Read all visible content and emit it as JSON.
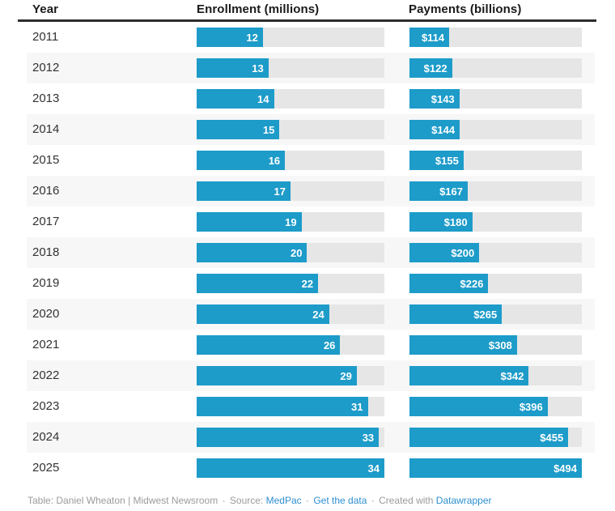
{
  "chart_data": {
    "type": "bar",
    "title": "",
    "columns": [
      "Year",
      "Enrollment (millions)",
      "Payments (billions)"
    ],
    "categories": [
      "2011",
      "2012",
      "2013",
      "2014",
      "2015",
      "2016",
      "2017",
      "2018",
      "2019",
      "2020",
      "2021",
      "2022",
      "2023",
      "2024",
      "2025"
    ],
    "series": [
      {
        "name": "Enrollment (millions)",
        "values": [
          12,
          13,
          14,
          15,
          16,
          17,
          19,
          20,
          22,
          24,
          26,
          29,
          31,
          33,
          34
        ],
        "max": 34,
        "value_prefix": ""
      },
      {
        "name": "Payments (billions)",
        "values": [
          114,
          122,
          143,
          144,
          155,
          167,
          180,
          200,
          226,
          265,
          308,
          342,
          396,
          455,
          494
        ],
        "max": 494,
        "value_prefix": "$"
      }
    ],
    "layout": {
      "bar_color": "#1d9bc9",
      "track_color": "#e6e6e6",
      "stripe_color": "#f7f7f7",
      "grid": false,
      "legend_position": "none"
    }
  },
  "footer": {
    "attribution": "Table: Daniel Wheaton | Midwest Newsroom",
    "separator": "·",
    "source_label": "Source:",
    "source_link": "MedPac",
    "get_data_link": "Get the data",
    "created_label": "Created with",
    "created_link": "Datawrapper"
  }
}
